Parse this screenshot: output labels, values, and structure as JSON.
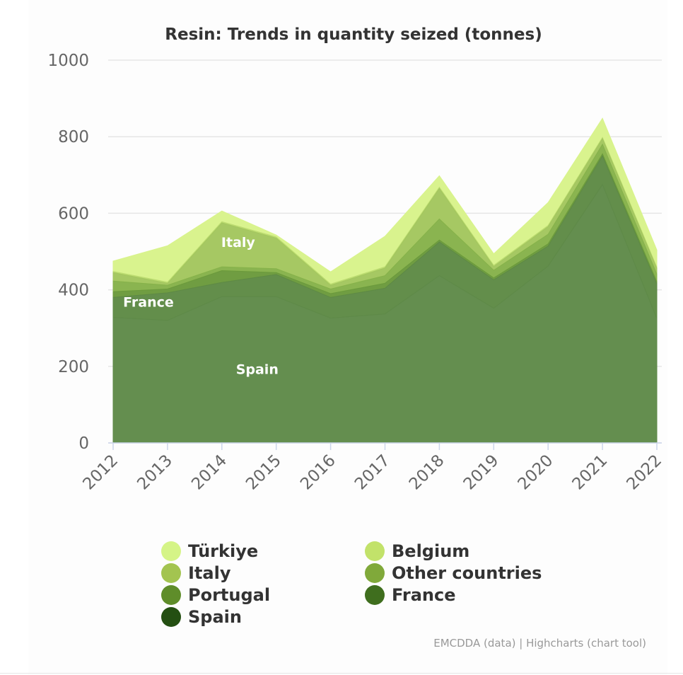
{
  "chart_data": {
    "type": "area",
    "stacked": true,
    "title": "Resin: Trends in quantity seized (tonnes)",
    "xlabel": "",
    "ylabel": "",
    "categories": [
      "2012",
      "2013",
      "2014",
      "2015",
      "2016",
      "2017",
      "2018",
      "2019",
      "2020",
      "2021",
      "2022"
    ],
    "ylim": [
      0,
      1000
    ],
    "yticks": [
      0,
      200,
      400,
      600,
      800,
      1000
    ],
    "grid": true,
    "legend_position": "bottom",
    "series": [
      {
        "name": "Spain",
        "color": "#5f8a49",
        "values": [
          328,
          320,
          382,
          382,
          326,
          337,
          437,
          352,
          462,
          675,
          325
        ]
      },
      {
        "name": "France",
        "color": "#5e8a45",
        "values": [
          52,
          72,
          37,
          58,
          54,
          67,
          88,
          74,
          52,
          75,
          90
        ]
      },
      {
        "name": "Portugal",
        "color": "#6b9a3c",
        "values": [
          15,
          10,
          31,
          5,
          10,
          13,
          5,
          5,
          6,
          5,
          6
        ]
      },
      {
        "name": "Other countries",
        "color": "#86b24a",
        "values": [
          28,
          10,
          10,
          10,
          12,
          20,
          55,
          20,
          25,
          25,
          20
        ]
      },
      {
        "name": "Italy",
        "color": "#a3c65e",
        "values": [
          22,
          5,
          115,
          80,
          10,
          20,
          80,
          10,
          20,
          15,
          15
        ]
      },
      {
        "name": "Belgium",
        "color": "#bcdc70",
        "values": [
          3,
          3,
          3,
          3,
          3,
          3,
          3,
          3,
          3,
          3,
          3
        ]
      },
      {
        "name": "Türkiye",
        "color": "#d8f38a",
        "values": [
          27,
          95,
          28,
          5,
          32,
          80,
          30,
          30,
          60,
          50,
          45
        ]
      }
    ],
    "area_labels": [
      "Spain",
      "France",
      "Italy"
    ]
  },
  "legend": {
    "items": [
      {
        "label": "Türkiye",
        "color": "#d5f487"
      },
      {
        "label": "Belgium",
        "color": "#c2e26a"
      },
      {
        "label": "Italy",
        "color": "#a3c450"
      },
      {
        "label": "Other countries",
        "color": "#80a93a"
      },
      {
        "label": "Portugal",
        "color": "#5f8d2a"
      },
      {
        "label": "France",
        "color": "#3f6e1e"
      },
      {
        "label": "Spain",
        "color": "#244f12"
      }
    ]
  },
  "credits": "EMCDDA (data) | Highcharts (chart tool)"
}
